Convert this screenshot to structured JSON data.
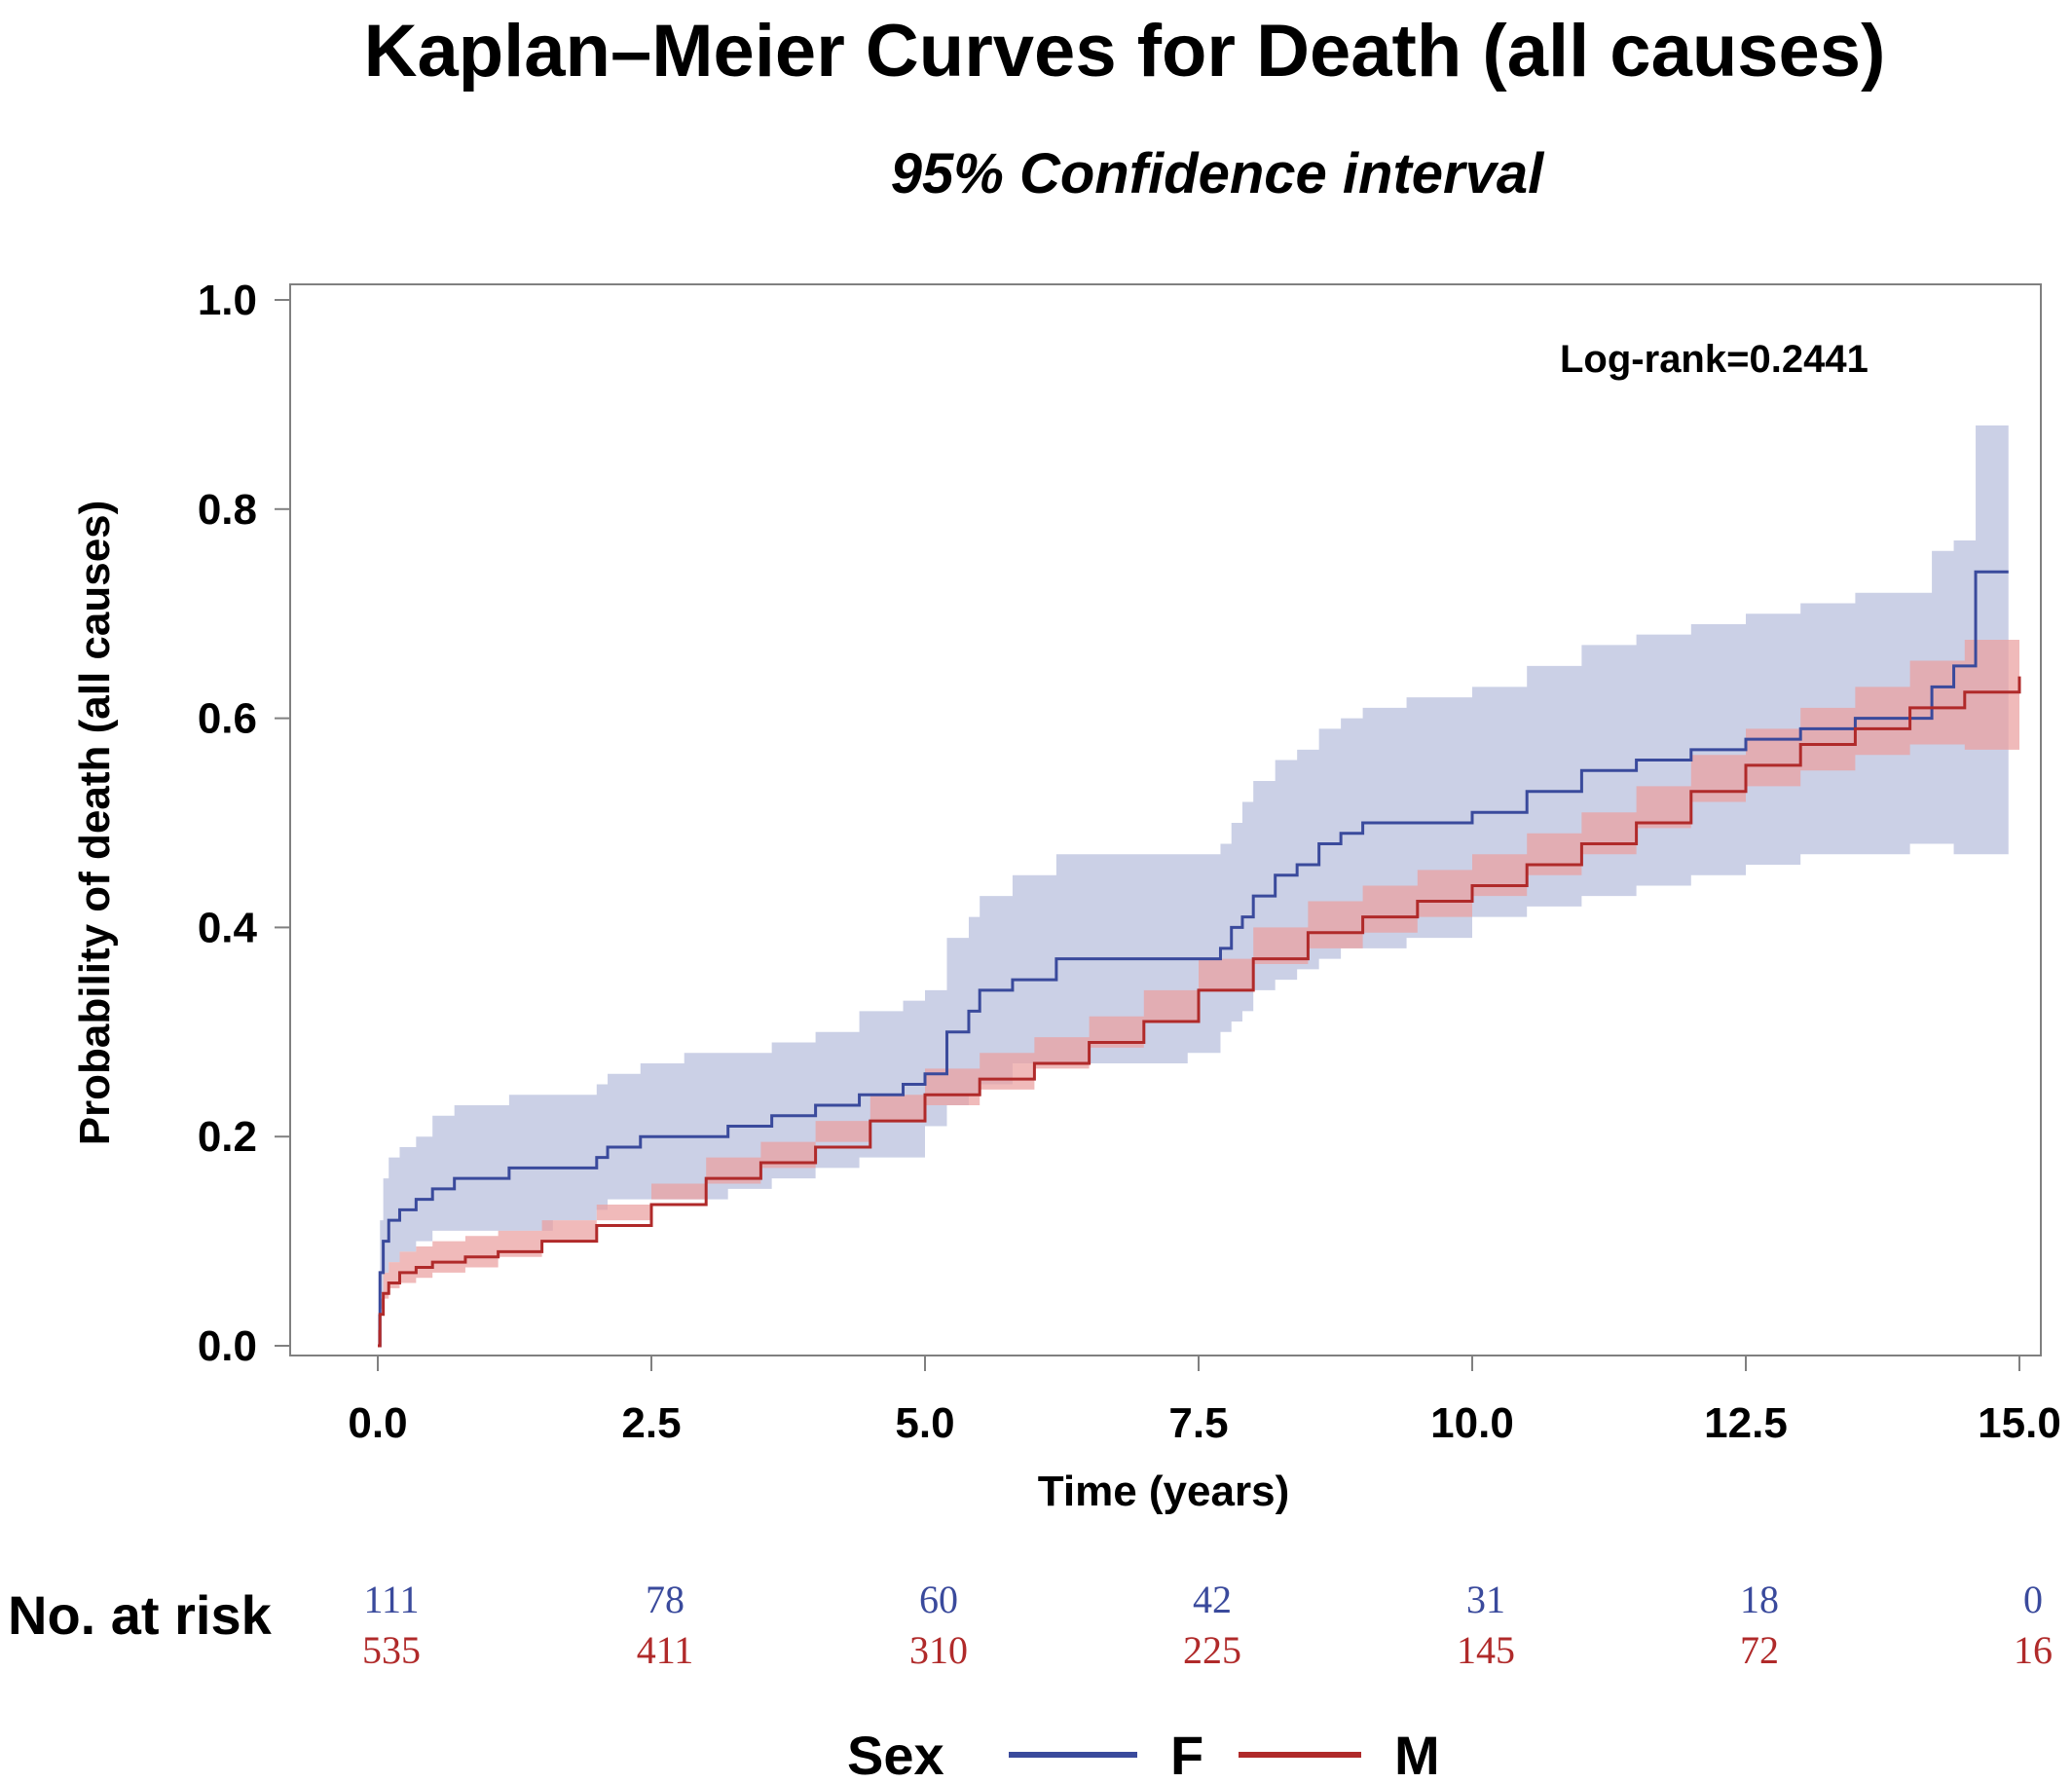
{
  "chart_data": {
    "type": "line",
    "title": "Kaplan–Meier Curves for Death (all causes)",
    "subtitle": "95% Confidence interval",
    "xlabel": "Time (years)",
    "ylabel": "Probability of death (all causes)",
    "xlim": [
      0,
      15
    ],
    "ylim": [
      0,
      1
    ],
    "x_ticks": [
      0,
      2.5,
      5,
      7.5,
      10,
      12.5,
      15
    ],
    "x_tick_labels": [
      "0.0",
      "2.5",
      "5.0",
      "7.5",
      "10.0",
      "12.5",
      "15.0"
    ],
    "y_ticks": [
      0,
      0.2,
      0.4,
      0.6,
      0.8,
      1.0
    ],
    "y_tick_labels": [
      "0.0",
      "0.2",
      "0.4",
      "0.6",
      "0.8",
      "1.0"
    ],
    "grid": false,
    "step": true,
    "annotation": "Log-rank=0.2441",
    "legend": {
      "title": "Sex",
      "placement": "bottom"
    },
    "series": [
      {
        "name": "F",
        "color": "#3a4a9c",
        "band_color": "#b7bedd",
        "x": [
          0,
          0.02,
          0.05,
          0.1,
          0.2,
          0.35,
          0.5,
          0.7,
          0.9,
          1.2,
          1.6,
          2.0,
          2.1,
          2.4,
          2.8,
          3.2,
          3.6,
          4.0,
          4.4,
          4.8,
          5.0,
          5.2,
          5.4,
          5.5,
          5.8,
          6.2,
          6.5,
          7.0,
          7.4,
          7.7,
          7.8,
          7.9,
          8.0,
          8.2,
          8.4,
          8.6,
          8.8,
          9.0,
          9.4,
          10.0,
          10.5,
          11.0,
          11.5,
          12.0,
          12.5,
          13.0,
          13.5,
          14.0,
          14.2,
          14.4,
          14.6,
          14.9
        ],
        "y": [
          0,
          0.07,
          0.1,
          0.12,
          0.13,
          0.14,
          0.15,
          0.16,
          0.16,
          0.17,
          0.17,
          0.18,
          0.19,
          0.2,
          0.2,
          0.21,
          0.22,
          0.23,
          0.24,
          0.25,
          0.26,
          0.3,
          0.32,
          0.34,
          0.35,
          0.37,
          0.37,
          0.37,
          0.37,
          0.38,
          0.4,
          0.41,
          0.43,
          0.45,
          0.46,
          0.48,
          0.49,
          0.5,
          0.5,
          0.51,
          0.53,
          0.55,
          0.56,
          0.57,
          0.58,
          0.59,
          0.6,
          0.6,
          0.63,
          0.65,
          0.74,
          0.74
        ],
        "lower": [
          0,
          0.03,
          0.05,
          0.07,
          0.08,
          0.09,
          0.1,
          0.11,
          0.11,
          0.11,
          0.11,
          0.12,
          0.13,
          0.14,
          0.14,
          0.14,
          0.15,
          0.16,
          0.17,
          0.18,
          0.18,
          0.21,
          0.23,
          0.24,
          0.25,
          0.27,
          0.27,
          0.27,
          0.27,
          0.28,
          0.3,
          0.31,
          0.32,
          0.34,
          0.35,
          0.36,
          0.37,
          0.38,
          0.38,
          0.39,
          0.41,
          0.42,
          0.43,
          0.44,
          0.45,
          0.46,
          0.47,
          0.47,
          0.48,
          0.48,
          0.47,
          0.47
        ],
        "upper": [
          0,
          0.12,
          0.16,
          0.18,
          0.19,
          0.2,
          0.22,
          0.23,
          0.23,
          0.24,
          0.24,
          0.25,
          0.26,
          0.27,
          0.28,
          0.28,
          0.29,
          0.3,
          0.32,
          0.33,
          0.34,
          0.39,
          0.41,
          0.43,
          0.45,
          0.47,
          0.47,
          0.47,
          0.47,
          0.48,
          0.5,
          0.52,
          0.54,
          0.56,
          0.57,
          0.59,
          0.6,
          0.61,
          0.62,
          0.63,
          0.65,
          0.67,
          0.68,
          0.69,
          0.7,
          0.71,
          0.72,
          0.72,
          0.76,
          0.77,
          0.88,
          0.88
        ]
      },
      {
        "name": "M",
        "color": "#b02a2a",
        "band_color": "#eaa0a0",
        "x": [
          0,
          0.02,
          0.05,
          0.1,
          0.2,
          0.35,
          0.5,
          0.8,
          1.1,
          1.5,
          2.0,
          2.5,
          3.0,
          3.5,
          4.0,
          4.5,
          5.0,
          5.5,
          6.0,
          6.5,
          7.0,
          7.5,
          8.0,
          8.5,
          9.0,
          9.5,
          10.0,
          10.5,
          11.0,
          11.5,
          12.0,
          12.5,
          13.0,
          13.5,
          14.0,
          14.5,
          15.0
        ],
        "y": [
          0,
          0.03,
          0.05,
          0.06,
          0.07,
          0.075,
          0.08,
          0.085,
          0.09,
          0.1,
          0.115,
          0.135,
          0.16,
          0.175,
          0.19,
          0.215,
          0.24,
          0.255,
          0.27,
          0.29,
          0.31,
          0.34,
          0.37,
          0.395,
          0.41,
          0.425,
          0.44,
          0.46,
          0.48,
          0.5,
          0.53,
          0.555,
          0.575,
          0.59,
          0.61,
          0.625,
          0.64
        ],
        "lower": [
          0,
          0.015,
          0.035,
          0.045,
          0.055,
          0.06,
          0.065,
          0.07,
          0.075,
          0.085,
          0.1,
          0.12,
          0.14,
          0.155,
          0.17,
          0.195,
          0.215,
          0.23,
          0.245,
          0.265,
          0.285,
          0.31,
          0.34,
          0.365,
          0.38,
          0.395,
          0.41,
          0.43,
          0.45,
          0.47,
          0.495,
          0.52,
          0.535,
          0.55,
          0.565,
          0.575,
          0.57
        ],
        "upper": [
          0,
          0.045,
          0.07,
          0.08,
          0.09,
          0.095,
          0.1,
          0.105,
          0.11,
          0.12,
          0.135,
          0.155,
          0.18,
          0.195,
          0.215,
          0.24,
          0.265,
          0.28,
          0.295,
          0.315,
          0.34,
          0.37,
          0.4,
          0.425,
          0.44,
          0.455,
          0.47,
          0.49,
          0.51,
          0.535,
          0.565,
          0.59,
          0.61,
          0.63,
          0.655,
          0.675,
          0.7
        ]
      }
    ],
    "risk_table": {
      "title": "No. at risk",
      "times": [
        0,
        2.5,
        5,
        7.5,
        10,
        12.5,
        15
      ],
      "rows": [
        {
          "name": "F",
          "color": "#3a4a9c",
          "values": [
            "111",
            "78",
            "60",
            "42",
            "31",
            "18",
            "0"
          ]
        },
        {
          "name": "M",
          "color": "#b02a2a",
          "values": [
            "535",
            "411",
            "310",
            "225",
            "145",
            "72",
            "16"
          ]
        }
      ]
    }
  }
}
